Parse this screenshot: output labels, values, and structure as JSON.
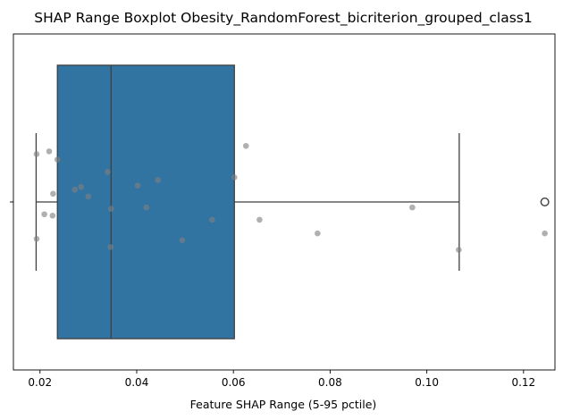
{
  "chart_data": {
    "type": "boxplot",
    "title": "SHAP Range Boxplot Obesity_RandomForest_bicriterion_grouped_class1",
    "xlabel": "Feature SHAP Range (5-95 pctile)",
    "ylabel": "",
    "xlim": [
      0.0145,
      0.1265
    ],
    "x_ticks": [
      "0.02",
      "0.04",
      "0.06",
      "0.08",
      "0.10",
      "0.12"
    ],
    "x_tick_values": [
      0.02,
      0.04,
      0.06,
      0.08,
      0.1,
      0.12
    ],
    "grid": false,
    "box": {
      "whisker_low": 0.0192,
      "q1": 0.0236,
      "median": 0.0347,
      "q3": 0.0602,
      "whisker_high": 0.1067,
      "outliers": [
        0.1244
      ],
      "color": "#3274a1"
    },
    "points": [
      {
        "x": 0.0193,
        "j": -0.35
      },
      {
        "x": 0.0193,
        "j": 0.27
      },
      {
        "x": 0.0209,
        "j": 0.09
      },
      {
        "x": 0.0219,
        "j": -0.37
      },
      {
        "x": 0.0227,
        "j": -0.06
      },
      {
        "x": 0.0226,
        "j": 0.1
      },
      {
        "x": 0.0236,
        "j": -0.31
      },
      {
        "x": 0.0272,
        "j": -0.09
      },
      {
        "x": 0.0285,
        "j": -0.11
      },
      {
        "x": 0.03,
        "j": -0.04
      },
      {
        "x": 0.034,
        "j": -0.22
      },
      {
        "x": 0.0347,
        "j": 0.05
      },
      {
        "x": 0.0346,
        "j": 0.33
      },
      {
        "x": 0.0402,
        "j": -0.12
      },
      {
        "x": 0.042,
        "j": 0.04
      },
      {
        "x": 0.0444,
        "j": -0.16
      },
      {
        "x": 0.0494,
        "j": 0.28
      },
      {
        "x": 0.0556,
        "j": 0.13
      },
      {
        "x": 0.0602,
        "j": -0.18
      },
      {
        "x": 0.0626,
        "j": -0.41
      },
      {
        "x": 0.0654,
        "j": 0.13
      },
      {
        "x": 0.0774,
        "j": 0.23
      },
      {
        "x": 0.097,
        "j": 0.04
      },
      {
        "x": 0.1066,
        "j": 0.35
      },
      {
        "x": 0.1244,
        "j": 0.23
      }
    ],
    "point_color": "#808080"
  }
}
